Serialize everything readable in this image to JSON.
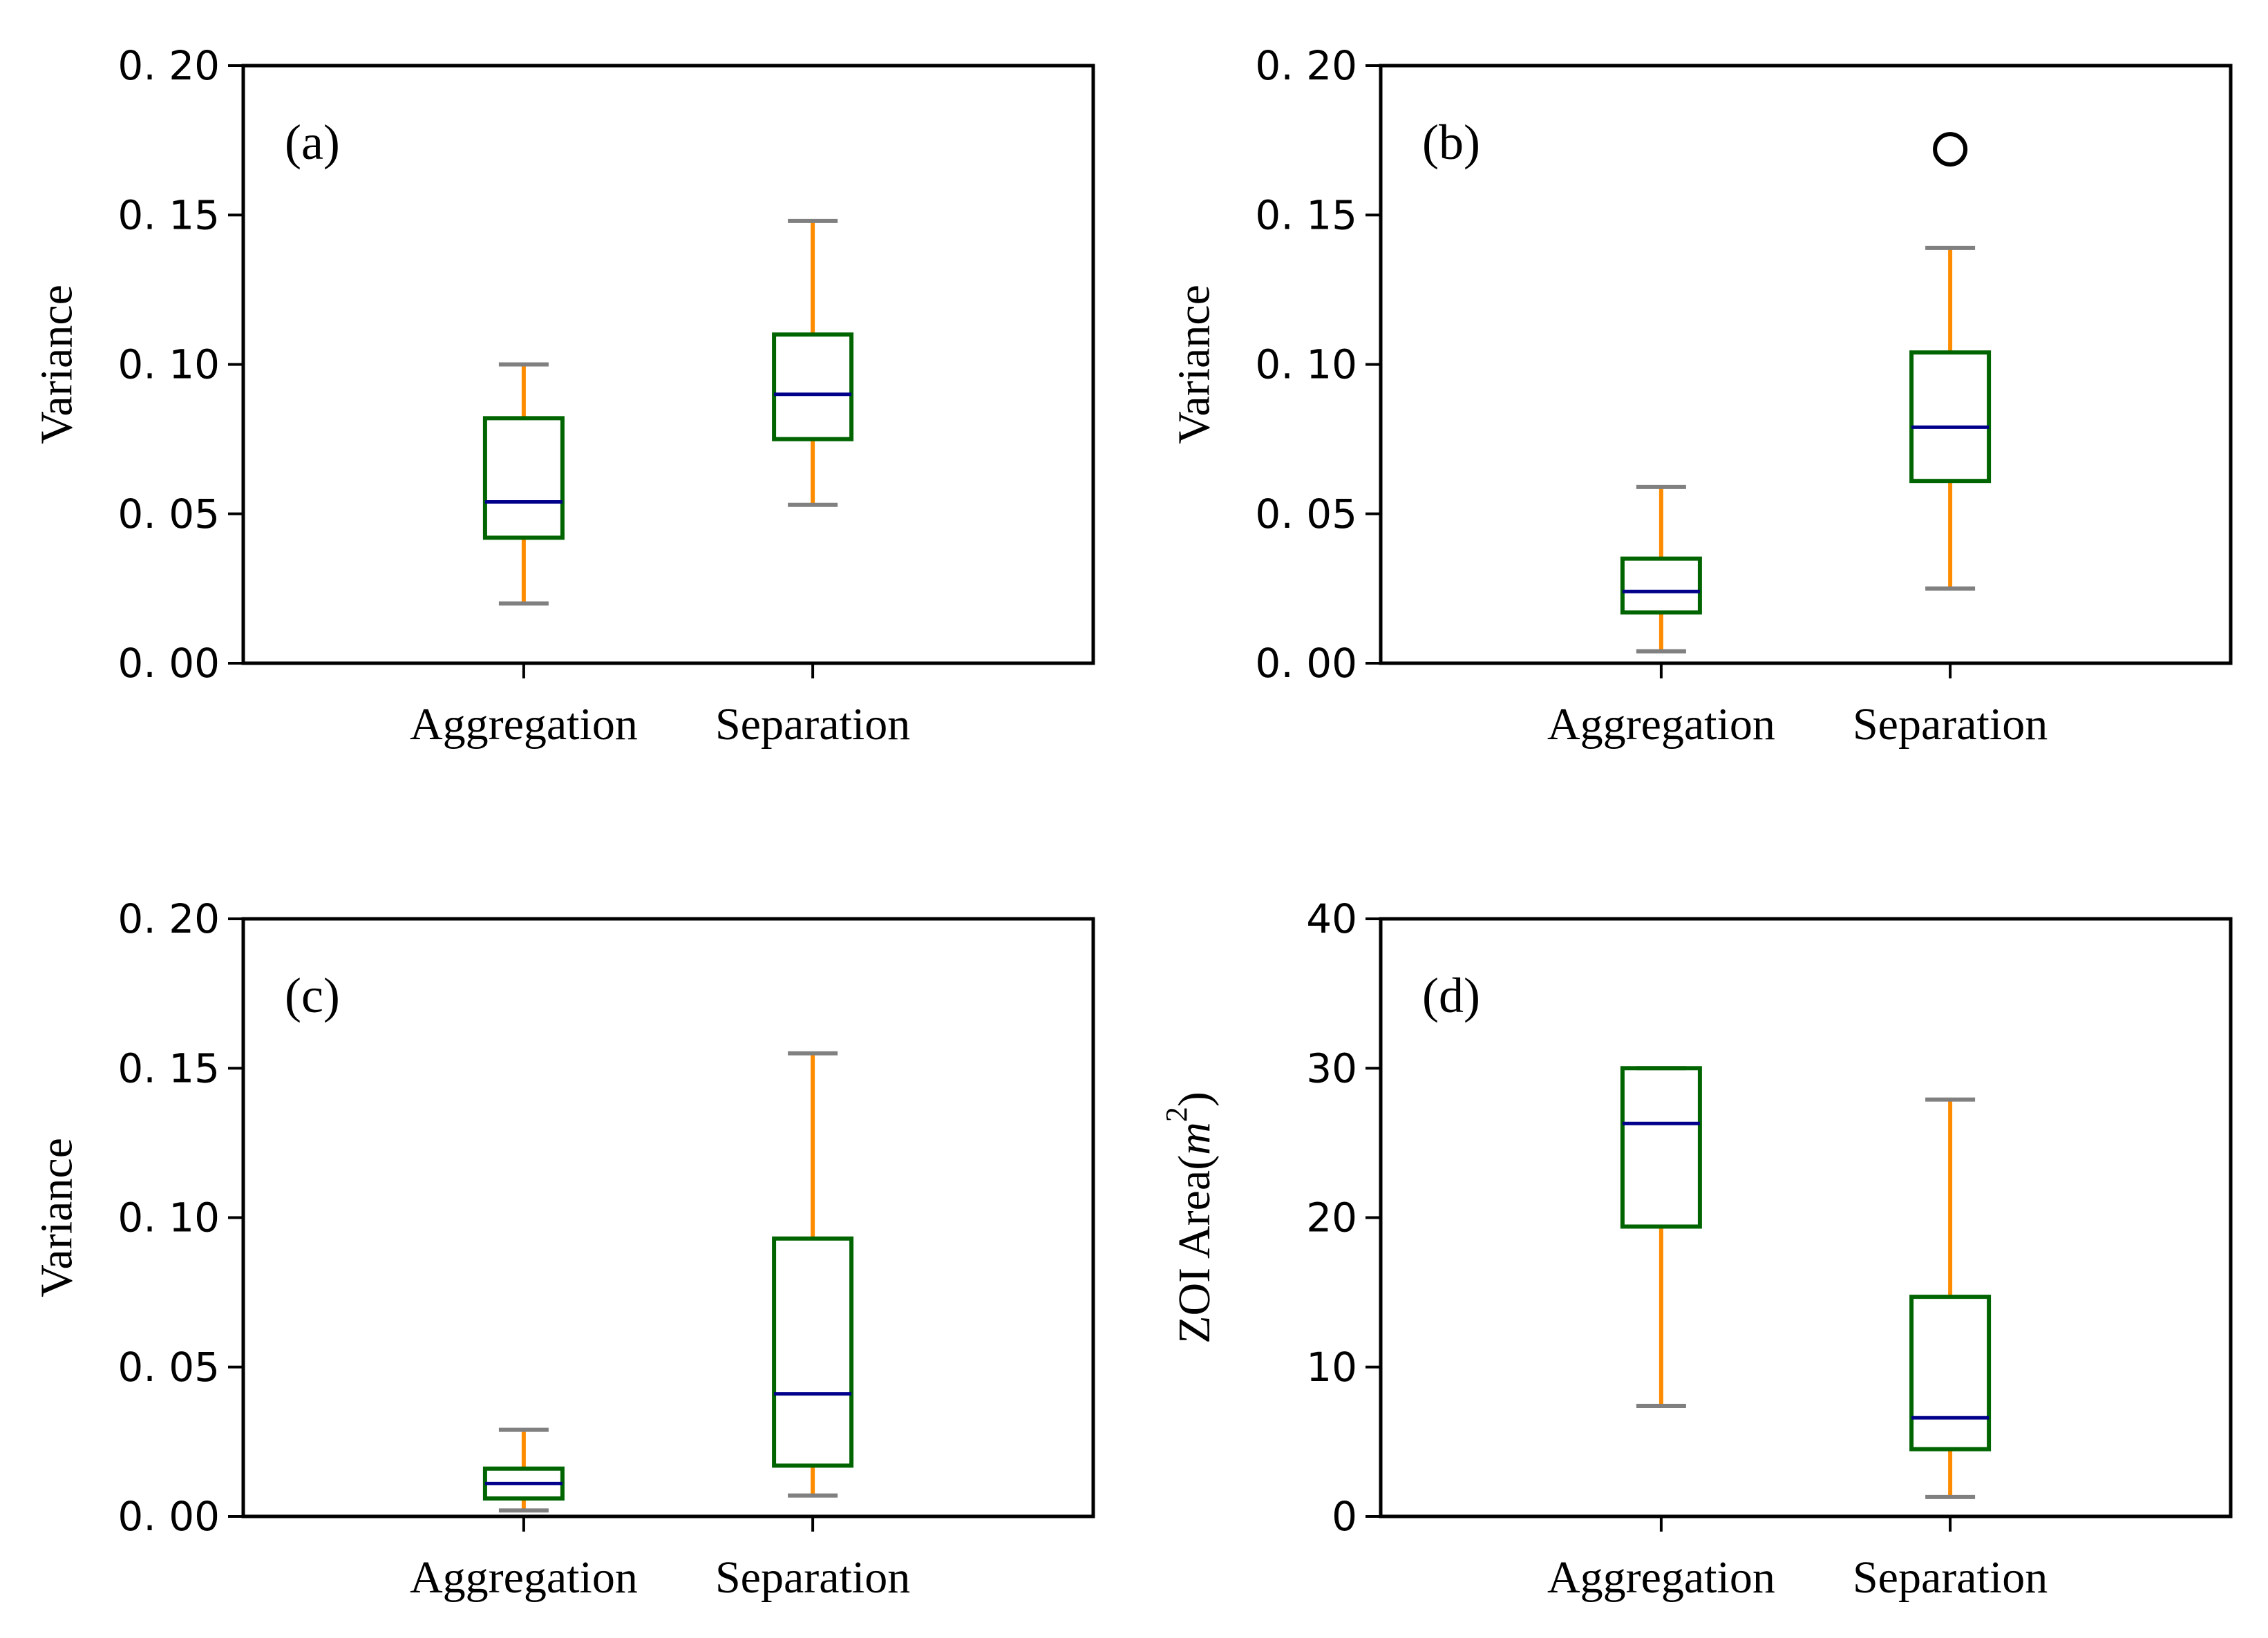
{
  "colors": {
    "box": "#006400",
    "median": "#00008b",
    "whisker": "#ff8c00",
    "cap": "#808080",
    "axis": "#000000",
    "flier": "#000000"
  },
  "chart_data": [
    {
      "type": "box",
      "panel_label": "(a)",
      "title": "",
      "xlabel": "",
      "ylabel": "Variance",
      "ylim": [
        0,
        0.2
      ],
      "yticks": [
        0,
        0.05,
        0.1,
        0.15,
        0.2
      ],
      "ytick_labels": [
        "0. 00",
        "0. 05",
        "0. 10",
        "0. 15",
        "0. 20"
      ],
      "categories": [
        "Aggregation",
        "Separation"
      ],
      "boxes": [
        {
          "whislo": 0.02,
          "q1": 0.042,
          "med": 0.054,
          "q3": 0.082,
          "whishi": 0.1,
          "fliers": []
        },
        {
          "whislo": 0.053,
          "q1": 0.075,
          "med": 0.09,
          "q3": 0.11,
          "whishi": 0.148,
          "fliers": []
        }
      ]
    },
    {
      "type": "box",
      "panel_label": "(b)",
      "title": "",
      "xlabel": "",
      "ylabel": "Variance",
      "ylim": [
        0,
        0.2
      ],
      "yticks": [
        0,
        0.05,
        0.1,
        0.15,
        0.2
      ],
      "ytick_labels": [
        "0. 00",
        "0. 05",
        "0. 10",
        "0. 15",
        "0. 20"
      ],
      "categories": [
        "Aggregation",
        "Separation"
      ],
      "boxes": [
        {
          "whislo": 0.004,
          "q1": 0.017,
          "med": 0.024,
          "q3": 0.035,
          "whishi": 0.059,
          "fliers": []
        },
        {
          "whislo": 0.025,
          "q1": 0.061,
          "med": 0.079,
          "q3": 0.104,
          "whishi": 0.139,
          "fliers": [
            0.172
          ]
        }
      ]
    },
    {
      "type": "box",
      "panel_label": "(c)",
      "title": "",
      "xlabel": "",
      "ylabel": "Variance",
      "ylim": [
        0,
        0.2
      ],
      "yticks": [
        0,
        0.05,
        0.1,
        0.15,
        0.2
      ],
      "ytick_labels": [
        "0. 00",
        "0. 05",
        "0. 10",
        "0. 15",
        "0. 20"
      ],
      "categories": [
        "Aggregation",
        "Separation"
      ],
      "boxes": [
        {
          "whislo": 0.002,
          "q1": 0.006,
          "med": 0.011,
          "q3": 0.016,
          "whishi": 0.029,
          "fliers": []
        },
        {
          "whislo": 0.007,
          "q1": 0.017,
          "med": 0.041,
          "q3": 0.093,
          "whishi": 0.155,
          "fliers": []
        }
      ]
    },
    {
      "type": "box",
      "panel_label": "(d)",
      "title": "",
      "xlabel": "",
      "ylabel": "ZOI Area(",
      "ylabel_math": "m",
      "ylabel_sup": "2",
      "ylabel_close": ")",
      "ylim": [
        0,
        40
      ],
      "yticks": [
        0,
        10,
        20,
        30,
        40
      ],
      "ytick_labels": [
        "0",
        "10",
        "20",
        "30",
        "40"
      ],
      "categories": [
        "Aggregation",
        "Separation"
      ],
      "boxes": [
        {
          "whislo": 7.4,
          "q1": 19.4,
          "med": 26.3,
          "q3": 30.0,
          "whishi": 30.0,
          "fliers": []
        },
        {
          "whislo": 1.3,
          "q1": 4.5,
          "med": 6.6,
          "q3": 14.7,
          "whishi": 27.9,
          "fliers": []
        }
      ]
    }
  ]
}
